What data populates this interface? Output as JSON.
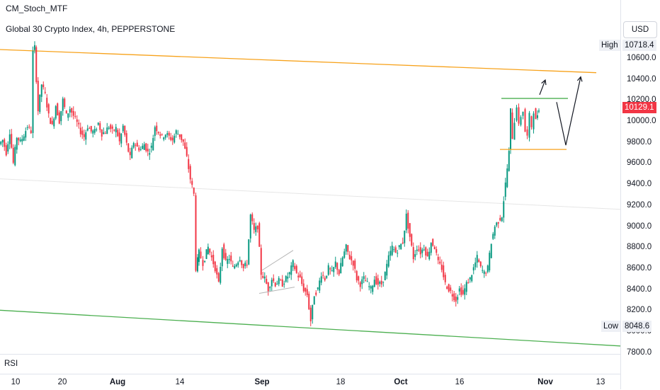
{
  "indicator_name": "CM_Stoch_MTF",
  "symbol_title": "Global 30 Crypto Index, 4h, PEPPERSTONE",
  "currency": "USD",
  "price_labels": [
    "10600.0",
    "10400.0",
    "10200.0",
    "10000.0",
    "9800.0",
    "9600.0",
    "9400.0",
    "9200.0",
    "9000.0",
    "8800.0",
    "8600.0",
    "8400.0",
    "8200.0",
    "8000.0",
    "7800.0"
  ],
  "high": {
    "label": "High",
    "value": "10718.4"
  },
  "low": {
    "label": "Low",
    "value": "8048.6"
  },
  "last_price": {
    "value": "10129.1",
    "color": "#f23645"
  },
  "rsi_label": "RSI",
  "time_labels": [
    "10",
    "20",
    "Aug",
    "14",
    "Sep",
    "18",
    "Oct",
    "16",
    "Nov",
    "13"
  ],
  "colors": {
    "up": "#089981",
    "down": "#f23645",
    "trend_orange": "#f7a21b",
    "trend_green": "#4caf50"
  },
  "chart_data": {
    "type": "candlestick",
    "ylim": [
      7800,
      10800
    ],
    "close_path": [
      [
        0,
        9780
      ],
      [
        5,
        9820
      ],
      [
        10,
        9700
      ],
      [
        15,
        9900
      ],
      [
        20,
        9600
      ],
      [
        25,
        9850
      ],
      [
        30,
        9800
      ],
      [
        35,
        9870
      ],
      [
        40,
        9950
      ],
      [
        45,
        9900
      ],
      [
        48,
        10650
      ],
      [
        50,
        10700
      ],
      [
        55,
        10100
      ],
      [
        60,
        10350
      ],
      [
        65,
        10250
      ],
      [
        70,
        10050
      ],
      [
        75,
        9950
      ],
      [
        80,
        10150
      ],
      [
        85,
        10000
      ],
      [
        90,
        10200
      ],
      [
        95,
        10050
      ],
      [
        100,
        10120
      ],
      [
        105,
        10050
      ],
      [
        110,
        9980
      ],
      [
        115,
        9900
      ],
      [
        120,
        9850
      ],
      [
        125,
        9950
      ],
      [
        130,
        9900
      ],
      [
        135,
        9900
      ],
      [
        140,
        9980
      ],
      [
        145,
        9880
      ],
      [
        150,
        9900
      ],
      [
        155,
        9950
      ],
      [
        160,
        9900
      ],
      [
        165,
        9930
      ],
      [
        170,
        9800
      ],
      [
        175,
        9950
      ],
      [
        180,
        9780
      ],
      [
        185,
        9650
      ],
      [
        190,
        9800
      ],
      [
        195,
        9750
      ],
      [
        200,
        9730
      ],
      [
        205,
        9780
      ],
      [
        210,
        9700
      ],
      [
        215,
        9750
      ],
      [
        220,
        9950
      ],
      [
        225,
        9900
      ],
      [
        230,
        9850
      ],
      [
        235,
        9880
      ],
      [
        240,
        9850
      ],
      [
        245,
        9820
      ],
      [
        250,
        9900
      ],
      [
        255,
        9860
      ],
      [
        260,
        9800
      ],
      [
        265,
        9650
      ],
      [
        270,
        9450
      ],
      [
        275,
        9300
      ],
      [
        278,
        8600
      ],
      [
        282,
        8750
      ],
      [
        288,
        8650
      ],
      [
        295,
        8800
      ],
      [
        300,
        8700
      ],
      [
        305,
        8600
      ],
      [
        310,
        8450
      ],
      [
        315,
        8800
      ],
      [
        320,
        8650
      ],
      [
        325,
        8700
      ],
      [
        330,
        8600
      ],
      [
        335,
        8650
      ],
      [
        340,
        8700
      ],
      [
        345,
        8600
      ],
      [
        350,
        8650
      ],
      [
        355,
        9100
      ],
      [
        360,
        8950
      ],
      [
        365,
        9000
      ],
      [
        370,
        8550
      ],
      [
        375,
        8500
      ],
      [
        380,
        8400
      ],
      [
        385,
        8500
      ],
      [
        390,
        8450
      ],
      [
        395,
        8480
      ],
      [
        400,
        8450
      ],
      [
        405,
        8500
      ],
      [
        410,
        8550
      ],
      [
        415,
        8650
      ],
      [
        420,
        8550
      ],
      [
        425,
        8500
      ],
      [
        430,
        8400
      ],
      [
        435,
        8350
      ],
      [
        440,
        8100
      ],
      [
        445,
        8350
      ],
      [
        450,
        8400
      ],
      [
        455,
        8550
      ],
      [
        460,
        8500
      ],
      [
        465,
        8600
      ],
      [
        470,
        8550
      ],
      [
        475,
        8650
      ],
      [
        480,
        8550
      ],
      [
        485,
        8700
      ],
      [
        490,
        8800
      ],
      [
        495,
        8700
      ],
      [
        500,
        8650
      ],
      [
        505,
        8500
      ],
      [
        510,
        8450
      ],
      [
        515,
        8500
      ],
      [
        520,
        8450
      ],
      [
        525,
        8400
      ],
      [
        530,
        8500
      ],
      [
        535,
        8450
      ],
      [
        540,
        8450
      ],
      [
        545,
        8550
      ],
      [
        550,
        8700
      ],
      [
        555,
        8800
      ],
      [
        560,
        8750
      ],
      [
        565,
        8800
      ],
      [
        570,
        8850
      ],
      [
        575,
        9100
      ],
      [
        580,
        8900
      ],
      [
        585,
        8700
      ],
      [
        590,
        8800
      ],
      [
        595,
        8750
      ],
      [
        600,
        8800
      ],
      [
        605,
        8700
      ],
      [
        610,
        8850
      ],
      [
        615,
        8800
      ],
      [
        620,
        8650
      ],
      [
        625,
        8600
      ],
      [
        630,
        8450
      ],
      [
        635,
        8400
      ],
      [
        640,
        8350
      ],
      [
        645,
        8300
      ],
      [
        650,
        8400
      ],
      [
        655,
        8350
      ],
      [
        660,
        8450
      ],
      [
        665,
        8500
      ],
      [
        670,
        8600
      ],
      [
        675,
        8700
      ],
      [
        680,
        8600
      ],
      [
        685,
        8550
      ],
      [
        690,
        8600
      ],
      [
        695,
        8850
      ],
      [
        700,
        9000
      ],
      [
        705,
        9050
      ],
      [
        710,
        9100
      ],
      [
        715,
        9400
      ],
      [
        720,
        9700
      ],
      [
        722,
        10100
      ],
      [
        725,
        9850
      ],
      [
        728,
        10000
      ],
      [
        731,
        10150
      ],
      [
        734,
        9950
      ],
      [
        737,
        10050
      ],
      [
        740,
        10100
      ],
      [
        743,
        9900
      ],
      [
        746,
        9850
      ],
      [
        749,
        10050
      ],
      [
        752,
        9950
      ],
      [
        755,
        10100
      ],
      [
        758,
        10000
      ],
      [
        762,
        10129
      ]
    ],
    "drawings": {
      "orange_trendline": [
        [
          0,
          10680
        ],
        [
          842,
          10460
        ]
      ],
      "green_trendline": [
        [
          0,
          8200
        ],
        [
          876,
          7860
        ]
      ],
      "grey_channel_line": [
        [
          0,
          9450
        ],
        [
          876,
          9160
        ]
      ],
      "range_top": [
        [
          708,
          10215
        ],
        [
          802,
          10215
        ]
      ],
      "range_bottom": [
        [
          706,
          9730
        ],
        [
          800,
          9730
        ]
      ],
      "projection_up_short": [
        [
          762,
          10250
        ],
        [
          770,
          10390
        ]
      ],
      "projection_path": [
        [
          786,
          10180
        ],
        [
          799,
          9770
        ],
        [
          820,
          10420
        ]
      ],
      "wedge_upper": [
        [
          370,
          8580
        ],
        [
          414,
          8770
        ]
      ],
      "wedge_lower": [
        [
          366,
          8360
        ],
        [
          416,
          8420
        ]
      ]
    }
  }
}
